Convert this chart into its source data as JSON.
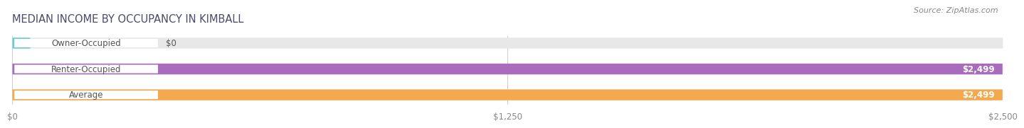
{
  "title": "MEDIAN INCOME BY OCCUPANCY IN KIMBALL",
  "source": "Source: ZipAtlas.com",
  "categories": [
    "Owner-Occupied",
    "Renter-Occupied",
    "Average"
  ],
  "values": [
    0,
    2499,
    2499
  ],
  "max_value": 2500,
  "bar_colors": [
    "#6dcdd4",
    "#a96cbd",
    "#f5a94e"
  ],
  "bar_bg_color": "#e8e8e8",
  "label_values": [
    "$0",
    "$2,499",
    "$2,499"
  ],
  "x_ticks": [
    0,
    1250,
    2500
  ],
  "x_tick_labels": [
    "$0",
    "$1,250",
    "$2,500"
  ],
  "title_fontsize": 10.5,
  "source_fontsize": 8,
  "label_fontsize": 8.5,
  "tick_fontsize": 8.5,
  "bar_height": 0.42,
  "background_color": "#ffffff",
  "label_bg_color": "#ffffff",
  "title_color": "#4a4a6a",
  "source_color": "#888888",
  "tick_color": "#888888",
  "grid_color": "#cccccc",
  "value_label_color": "#ffffff",
  "cat_label_color": "#555555"
}
